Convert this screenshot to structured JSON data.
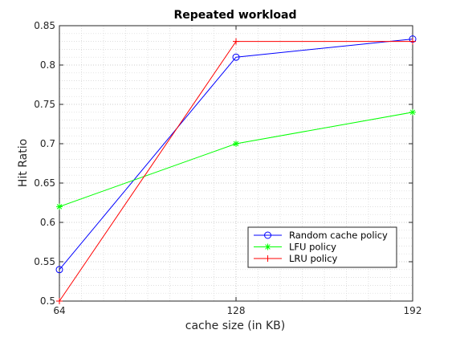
{
  "chart_data": {
    "type": "line",
    "title": "Repeated workload",
    "xlabel": "cache size (in KB)",
    "ylabel": "Hit Ratio",
    "x": [
      64,
      128,
      192
    ],
    "xticks": [
      "64",
      "128",
      "192"
    ],
    "xlim": [
      64,
      192
    ],
    "ylim": [
      0.5,
      0.85
    ],
    "yticks": [
      "0.5",
      "0.55",
      "0.6",
      "0.65",
      "0.7",
      "0.75",
      "0.8",
      "0.85"
    ],
    "grid": true,
    "legend_position": "bottom-right",
    "series": [
      {
        "name": "Random cache policy",
        "values": [
          0.54,
          0.81,
          0.833
        ],
        "color": "#0000ff",
        "marker": "circle"
      },
      {
        "name": "LFU policy",
        "values": [
          0.62,
          0.7,
          0.74
        ],
        "color": "#00ff00",
        "marker": "asterisk"
      },
      {
        "name": "LRU policy",
        "values": [
          0.5,
          0.83,
          0.83
        ],
        "color": "#ff0000",
        "marker": "plus"
      }
    ]
  }
}
